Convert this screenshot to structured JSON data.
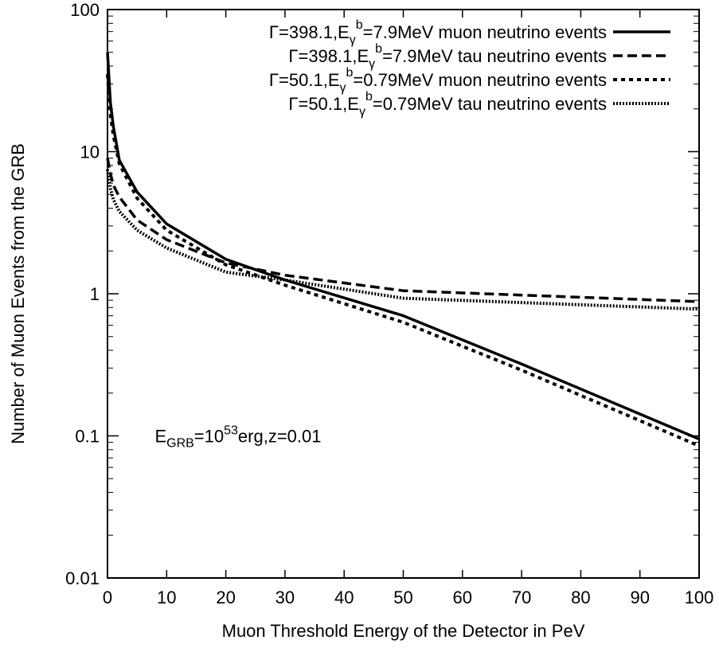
{
  "chart_data": {
    "type": "line",
    "title": "",
    "xlabel": "Muon Threshold Energy of the Detector in PeV",
    "ylabel": "Number of Muon Events from the GRB",
    "xlim": [
      0,
      100
    ],
    "ylim": [
      0.01,
      100
    ],
    "yscale": "log",
    "grid": false,
    "legend_position": "top-right",
    "x_ticks": [
      0,
      10,
      20,
      30,
      40,
      50,
      60,
      70,
      80,
      90,
      100
    ],
    "x_tick_labels": [
      "0",
      "10",
      "20",
      "30",
      "40",
      "50",
      "60",
      "70",
      "80",
      "90",
      "100"
    ],
    "y_ticks": [
      0.01,
      0.1,
      1,
      10,
      100
    ],
    "y_tick_labels": [
      "0.01",
      "0.1",
      "1",
      "10",
      "100"
    ],
    "annotation": {
      "prefix": "E",
      "sub": "GRB",
      "mid": "=10",
      "sup": "53",
      "suffix": "erg,z=0.01",
      "x": 8,
      "y": 0.1
    },
    "series": [
      {
        "legend": {
          "pre": "Γ=398.1,E",
          "sub": "γ",
          "sup": "b",
          "post": "=7.9MeV muon neutrino events"
        },
        "dash": "solid",
        "x": [
          0,
          0.5,
          1,
          2,
          5,
          10,
          20,
          30,
          50,
          70,
          100
        ],
        "y": [
          50,
          22,
          15,
          8.7,
          5.2,
          3.1,
          1.75,
          1.25,
          0.7,
          0.32,
          0.095
        ]
      },
      {
        "legend": {
          "pre": "Γ=398.1,E",
          "sub": "γ",
          "sup": "b",
          "post": "=7.9MeV tau neutrino events"
        },
        "dash": "dashed",
        "x": [
          0,
          0.5,
          1,
          2,
          5,
          10,
          20,
          30,
          50,
          100
        ],
        "y": [
          9,
          7,
          5.8,
          4.8,
          3.3,
          2.4,
          1.65,
          1.35,
          1.05,
          0.88
        ]
      },
      {
        "legend": {
          "pre": "Γ=50.1,E",
          "sub": "γ",
          "sup": "b",
          "post": "=0.79MeV muon neutrino events"
        },
        "dash": "dotted",
        "x": [
          0,
          0.5,
          1,
          2,
          5,
          10,
          20,
          30,
          50,
          70,
          100
        ],
        "y": [
          35,
          18,
          13,
          8.2,
          4.7,
          2.8,
          1.6,
          1.15,
          0.63,
          0.29,
          0.085
        ]
      },
      {
        "legend": {
          "pre": "Γ=50.1,E",
          "sub": "γ",
          "sup": "b",
          "post": "=0.79MeV tau neutrino events"
        },
        "dash": "fine-dotted",
        "x": [
          0,
          0.5,
          1,
          2,
          5,
          10,
          20,
          30,
          50,
          100
        ],
        "y": [
          7.5,
          5.5,
          4.6,
          3.8,
          2.8,
          2.1,
          1.42,
          1.25,
          0.93,
          0.78
        ]
      }
    ]
  }
}
